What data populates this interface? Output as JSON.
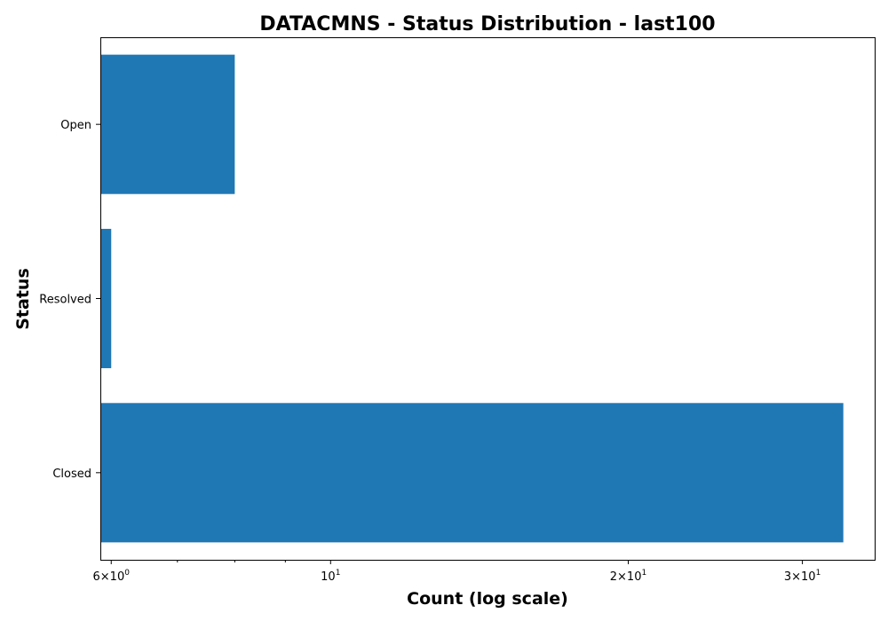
{
  "chart_data": {
    "type": "bar",
    "orientation": "horizontal",
    "title": "DATACMNS - Status Distribution - last100",
    "xlabel": "Count (log scale)",
    "ylabel": "Status",
    "x_scale": "log",
    "xlim": [
      5.85,
      35.5
    ],
    "grid": false,
    "categories": [
      "Open",
      "Resolved",
      "Closed"
    ],
    "values": [
      8,
      6,
      33
    ],
    "bar_color": "#1f77b4",
    "x_ticks": [
      {
        "value": 6,
        "base": "6",
        "mult": "×",
        "power_base": "10",
        "exponent": "0"
      },
      {
        "value": 10,
        "base": "",
        "mult": "",
        "power_base": "10",
        "exponent": "1"
      },
      {
        "value": 20,
        "base": "2",
        "mult": "×",
        "power_base": "10",
        "exponent": "1"
      },
      {
        "value": 30,
        "base": "3",
        "mult": "×",
        "power_base": "10",
        "exponent": "1"
      }
    ],
    "x_minor_ticks": [
      7,
      8,
      9
    ]
  }
}
